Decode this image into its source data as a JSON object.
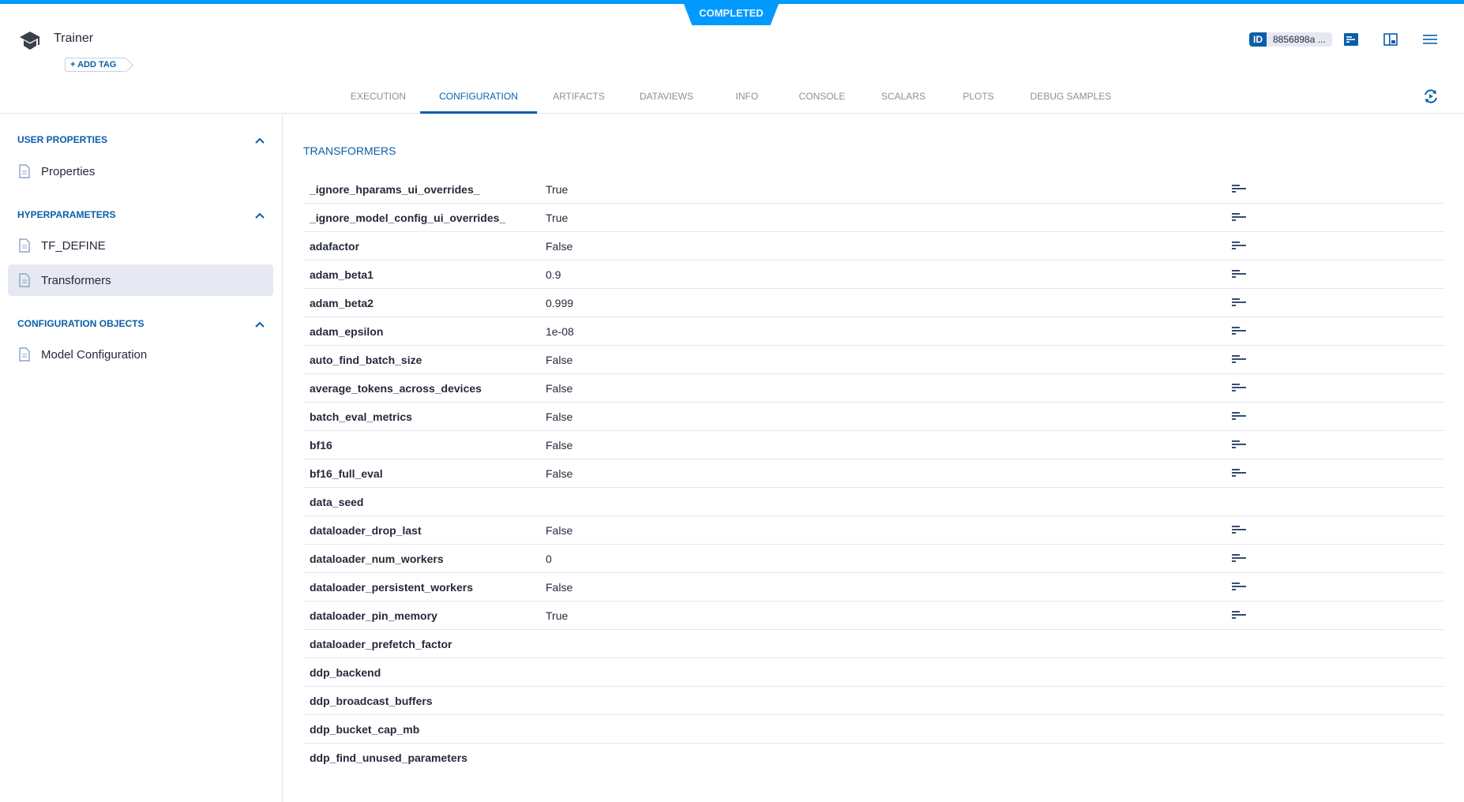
{
  "status": "COMPLETED",
  "header": {
    "title": "Trainer",
    "add_tag": "+ ADD TAG",
    "id_label": "ID",
    "id_value": "8856898a ..."
  },
  "tabs": [
    {
      "label": "EXECUTION",
      "active": false
    },
    {
      "label": "CONFIGURATION",
      "active": true
    },
    {
      "label": "ARTIFACTS",
      "active": false
    },
    {
      "label": "DATAVIEWS",
      "active": false
    },
    {
      "label": "INFO",
      "active": false
    },
    {
      "label": "CONSOLE",
      "active": false
    },
    {
      "label": "SCALARS",
      "active": false
    },
    {
      "label": "PLOTS",
      "active": false
    },
    {
      "label": "DEBUG SAMPLES",
      "active": false
    }
  ],
  "sidebar": {
    "sections": [
      {
        "title": "USER PROPERTIES",
        "items": [
          "Properties"
        ]
      },
      {
        "title": "HYPERPARAMETERS",
        "items": [
          "TF_DEFINE",
          "Transformers"
        ]
      },
      {
        "title": "CONFIGURATION OBJECTS",
        "items": [
          "Model Configuration"
        ]
      }
    ],
    "selected": "Transformers"
  },
  "main": {
    "heading": "TRANSFORMERS",
    "rows": [
      {
        "key": "_ignore_hparams_ui_overrides_",
        "value": "True",
        "desc": true
      },
      {
        "key": "_ignore_model_config_ui_overrides_",
        "value": "True",
        "desc": true
      },
      {
        "key": "adafactor",
        "value": "False",
        "desc": true
      },
      {
        "key": "adam_beta1",
        "value": "0.9",
        "desc": true
      },
      {
        "key": "adam_beta2",
        "value": "0.999",
        "desc": true
      },
      {
        "key": "adam_epsilon",
        "value": "1e-08",
        "desc": true
      },
      {
        "key": "auto_find_batch_size",
        "value": "False",
        "desc": true
      },
      {
        "key": "average_tokens_across_devices",
        "value": "False",
        "desc": true
      },
      {
        "key": "batch_eval_metrics",
        "value": "False",
        "desc": true
      },
      {
        "key": "bf16",
        "value": "False",
        "desc": true
      },
      {
        "key": "bf16_full_eval",
        "value": "False",
        "desc": true
      },
      {
        "key": "data_seed",
        "value": "",
        "desc": false
      },
      {
        "key": "dataloader_drop_last",
        "value": "False",
        "desc": true
      },
      {
        "key": "dataloader_num_workers",
        "value": "0",
        "desc": true
      },
      {
        "key": "dataloader_persistent_workers",
        "value": "False",
        "desc": true
      },
      {
        "key": "dataloader_pin_memory",
        "value": "True",
        "desc": true
      },
      {
        "key": "dataloader_prefetch_factor",
        "value": "",
        "desc": false
      },
      {
        "key": "ddp_backend",
        "value": "",
        "desc": false
      },
      {
        "key": "ddp_broadcast_buffers",
        "value": "",
        "desc": false
      },
      {
        "key": "ddp_bucket_cap_mb",
        "value": "",
        "desc": false
      },
      {
        "key": "ddp_find_unused_parameters",
        "value": "",
        "desc": false
      }
    ]
  },
  "colors": {
    "accent": "#0b5ea8",
    "status": "#009aff",
    "selected_bg": "#e6e9f2"
  }
}
